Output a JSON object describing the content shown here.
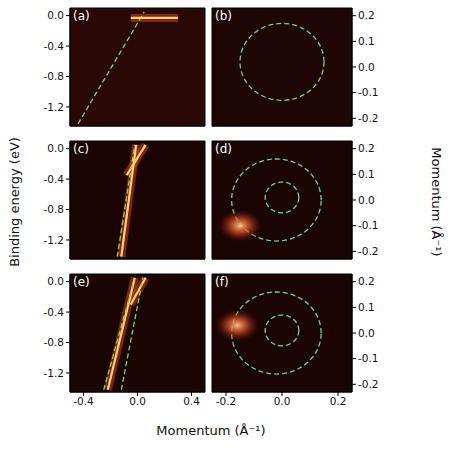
{
  "figure": {
    "xlabel": "Momentum (Å⁻¹)",
    "ylabel": "Binding energy (eV)",
    "y2label": "Momentum (Å⁻¹)"
  },
  "chart_data": [
    {
      "type": "line",
      "title": "(a)",
      "color": "#2a0805",
      "xlim": [
        -0.5,
        0.5
      ],
      "ylim": [
        -1.45,
        0.1
      ],
      "xticks": [
        -0.4,
        {
          "value": 0,
          "label": "0.0"
        },
        0.4
      ],
      "yticks": [
        {
          "value": 0,
          "label": "0.0"
        },
        -0.4,
        -0.8,
        -1.2
      ],
      "tick_labels": "y",
      "series": [
        {
          "color": "#7ed957",
          "line_style": "dashed",
          "x": [
            -0.44,
            0.05
          ],
          "values": [
            -1.42,
            0.05
          ]
        },
        {
          "color": "#ffd27a",
          "line_style": "solid",
          "x": [
            -0.05,
            0.3
          ],
          "values": [
            -0.03,
            -0.03
          ]
        }
      ]
    },
    {
      "type": "contour",
      "title": "(b)",
      "color": "#1e0604",
      "xlim": [
        -0.25,
        0.25
      ],
      "ylim": [
        -0.23,
        0.23
      ],
      "xticks": [
        -0.2,
        {
          "value": 0,
          "label": "0.0"
        },
        0.2
      ],
      "yticks": [
        0.2,
        0.1,
        {
          "value": 0,
          "label": "0.0"
        },
        -0.1,
        -0.2
      ],
      "tick_labels": "y",
      "circles": [
        {
          "color": "#7ed957",
          "line_style": "dashed",
          "cx": 0.0,
          "cy": 0.02,
          "r": 0.15
        }
      ]
    },
    {
      "type": "line",
      "title": "(c)",
      "color": "#1a0503",
      "xlim": [
        -0.5,
        0.5
      ],
      "ylim": [
        -1.45,
        0.1
      ],
      "xticks": [
        -0.4,
        {
          "value": 0,
          "label": "0.0"
        },
        0.4
      ],
      "yticks": [
        {
          "value": 0,
          "label": "0.0"
        },
        -0.4,
        -0.8,
        -1.2
      ],
      "tick_labels": "y",
      "series": [
        {
          "color": "#ffd27a",
          "line_style": "solid",
          "x": [
            -0.12,
            -0.01
          ],
          "values": [
            -1.42,
            0.05
          ]
        },
        {
          "color": "#ffd27a",
          "line_style": "solid",
          "x": [
            -0.08,
            0.06
          ],
          "values": [
            -0.35,
            0.05
          ]
        },
        {
          "color": "#7ed957",
          "line_style": "dashed",
          "x": [
            -0.15,
            -0.02
          ],
          "values": [
            -1.42,
            0.05
          ]
        }
      ]
    },
    {
      "type": "contour",
      "title": "(d)",
      "color": "#1a0503",
      "xlim": [
        -0.25,
        0.25
      ],
      "ylim": [
        -0.23,
        0.23
      ],
      "xticks": [
        -0.2,
        {
          "value": 0,
          "label": "0.0"
        },
        0.2
      ],
      "yticks": [
        0.2,
        0.1,
        {
          "value": 0,
          "label": "0.0"
        },
        -0.1,
        -0.2
      ],
      "tick_labels": "y",
      "circles": [
        {
          "color": "#7ed957",
          "line_style": "dashed",
          "cx": -0.02,
          "cy": 0.0,
          "r": 0.16
        },
        {
          "color": "#7ed957",
          "line_style": "dashed",
          "cx": 0.0,
          "cy": 0.01,
          "r": 0.06
        }
      ],
      "spots": [
        {
          "color": "#ffcc80",
          "x": -0.15,
          "y": -0.1
        }
      ]
    },
    {
      "type": "line",
      "title": "(e)",
      "color": "#1a0503",
      "xlim": [
        -0.5,
        0.5
      ],
      "ylim": [
        -1.45,
        0.1
      ],
      "xticks": [
        -0.4,
        {
          "value": 0,
          "label": "0.0"
        },
        0.4
      ],
      "yticks": [
        {
          "value": 0,
          "label": "0.0"
        },
        -0.4,
        -0.8,
        -1.2
      ],
      "tick_labels": true,
      "series": [
        {
          "color": "#ffd27a",
          "line_style": "solid",
          "x": [
            -0.22,
            -0.02
          ],
          "values": [
            -1.42,
            0.05
          ]
        },
        {
          "color": "#ffd27a",
          "line_style": "solid",
          "x": [
            -0.05,
            0.06
          ],
          "values": [
            -0.3,
            0.05
          ]
        },
        {
          "color": "#7ed957",
          "line_style": "dashed",
          "x": [
            -0.25,
            -0.02
          ],
          "values": [
            -1.42,
            0.05
          ]
        },
        {
          "color": "#7ed957",
          "line_style": "dashed",
          "x": [
            -0.12,
            0.04
          ],
          "values": [
            -1.42,
            0.05
          ]
        }
      ]
    },
    {
      "type": "contour",
      "title": "(f)",
      "color": "#1a0503",
      "xlim": [
        -0.25,
        0.25
      ],
      "ylim": [
        -0.23,
        0.23
      ],
      "xticks": [
        -0.2,
        {
          "value": 0,
          "label": "0.0"
        },
        0.2
      ],
      "yticks": [
        0.2,
        0.1,
        {
          "value": 0,
          "label": "0.0"
        },
        -0.1,
        -0.2
      ],
      "tick_labels": true,
      "circles": [
        {
          "color": "#7ed957",
          "line_style": "dashed",
          "cx": -0.02,
          "cy": 0.0,
          "r": 0.16
        },
        {
          "color": "#7ed957",
          "line_style": "dashed",
          "cx": 0.0,
          "cy": 0.01,
          "r": 0.06
        }
      ],
      "spots": [
        {
          "color": "#ffcc80",
          "x": -0.16,
          "y": 0.03
        }
      ]
    }
  ]
}
